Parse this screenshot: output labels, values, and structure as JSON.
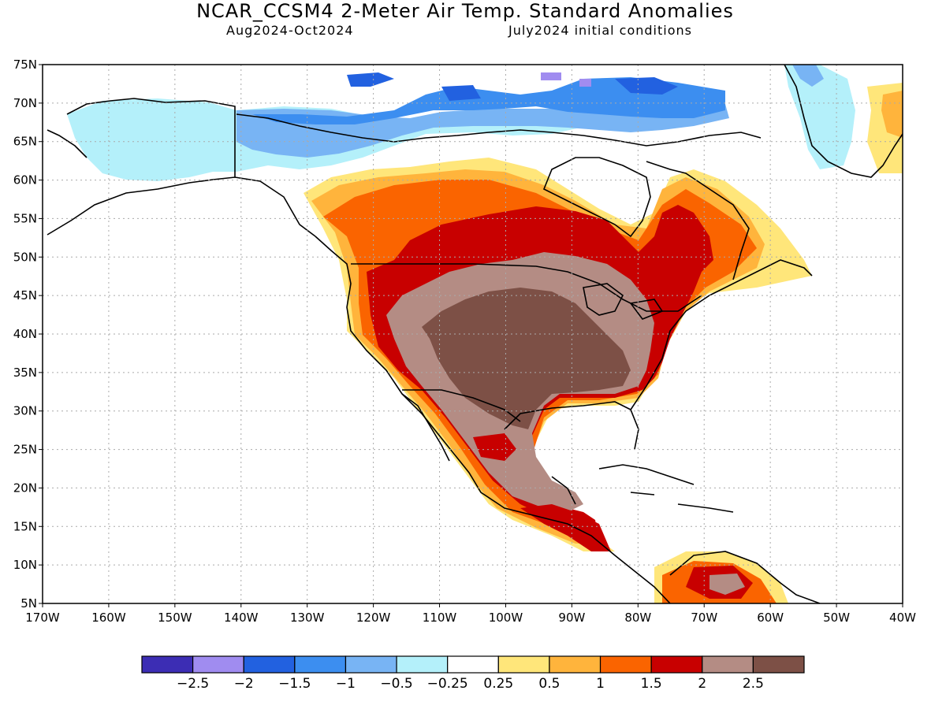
{
  "title": "NCAR_CCSM4 2-Meter Air Temp. Standard Anomalies",
  "period": "Aug2024-Oct2024",
  "init": "July2024 initial conditions",
  "lat_labels": [
    "75N",
    "70N",
    "65N",
    "60N",
    "55N",
    "50N",
    "45N",
    "40N",
    "35N",
    "30N",
    "25N",
    "20N",
    "15N",
    "10N",
    "5N"
  ],
  "lon_labels": [
    "170W",
    "160W",
    "150W",
    "140W",
    "130W",
    "120W",
    "110W",
    "100W",
    "90W",
    "80W",
    "70W",
    "60W",
    "50W",
    "40W"
  ],
  "colorbar": {
    "colors": [
      "#3c2db4",
      "#a08cf0",
      "#2261e0",
      "#3c8ef0",
      "#78b4f4",
      "#b4f0fa",
      "#ffffff",
      "#ffe67a",
      "#ffb43c",
      "#fa6400",
      "#c80000",
      "#b48c84",
      "#7d5046"
    ],
    "labels": [
      "-2.5",
      "-2",
      "-1.5",
      "-1",
      "-0.5",
      "-0.25",
      "0.25",
      "0.5",
      "1",
      "1.5",
      "2",
      "2.5"
    ]
  },
  "map_data": {
    "type": "shaded-map",
    "region": "North America",
    "lat_range": [
      5,
      75
    ],
    "lon_range": [
      -170,
      -40
    ],
    "variable": "2-Meter Air Temp. Standard Anomalies",
    "dominant_features": [
      {
        "region": "central & southern United States",
        "category": ">2.5"
      },
      {
        "region": "southern Canada / northern US border",
        "category": "1.5-2.5"
      },
      {
        "region": "northern Canadian Arctic & Alaska",
        "category": "-1.5 to -0.25"
      }
    ]
  }
}
